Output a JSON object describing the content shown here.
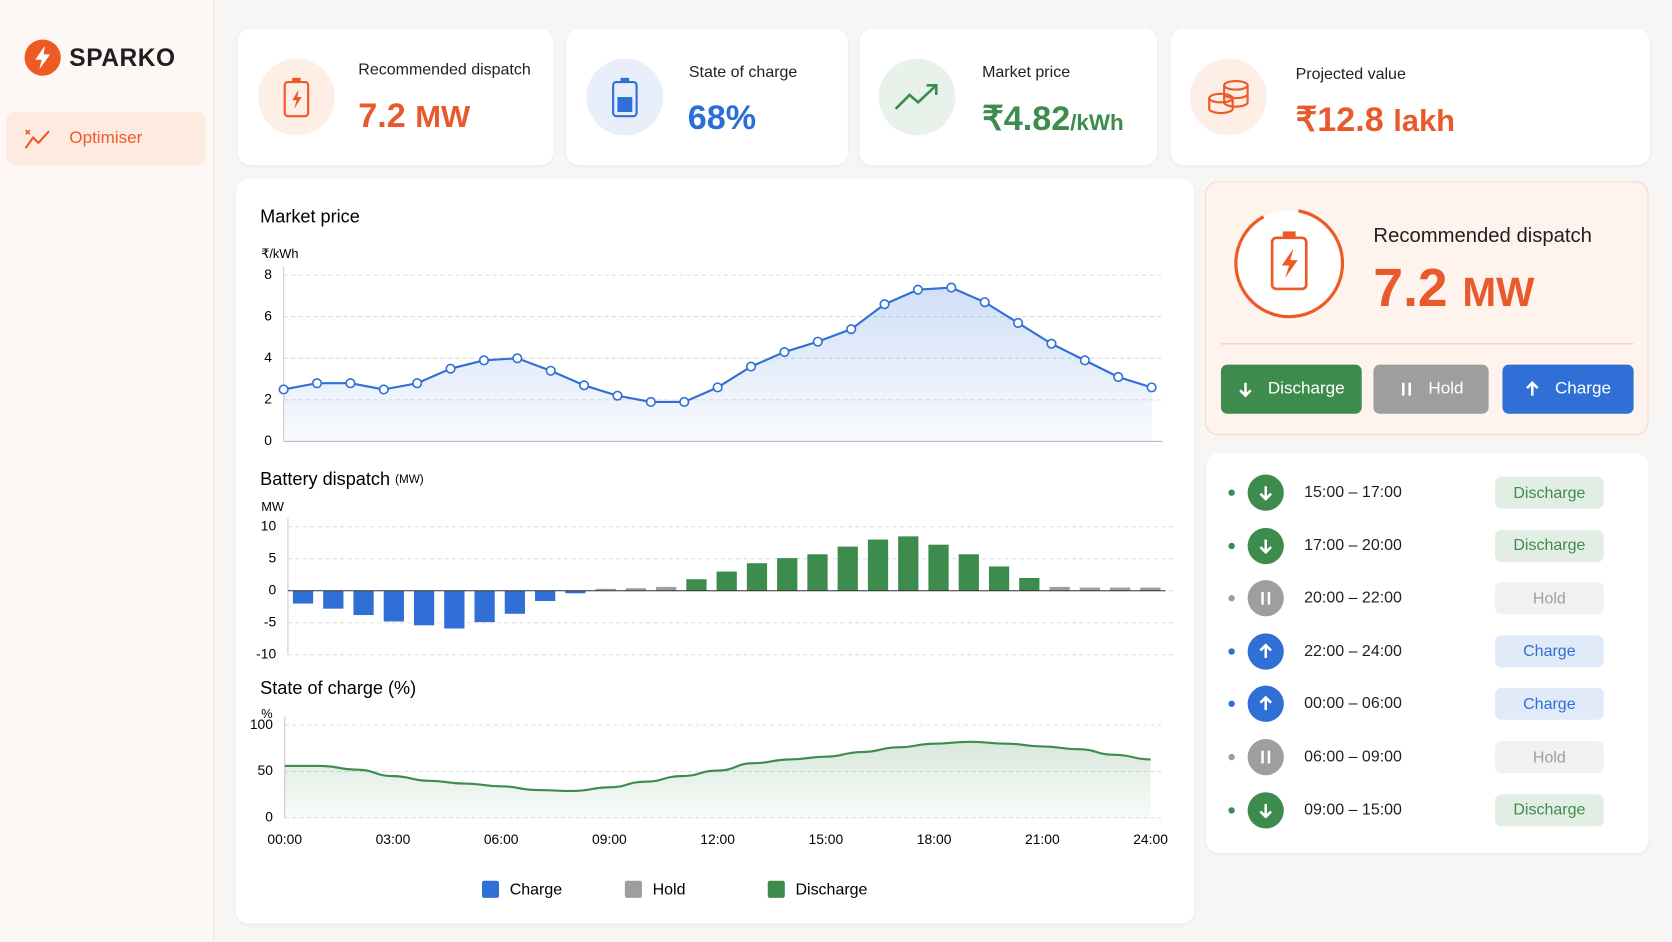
{
  "brand": "SPARKO",
  "nav": [
    {
      "label": "Optimiser"
    }
  ],
  "kpis": [
    {
      "label": "Recommended dispatch",
      "value": "7.2",
      "unit": "MW"
    },
    {
      "label": "State of charge",
      "value": "68%"
    },
    {
      "label": "Market price",
      "value": "₹4.82",
      "unit": "/kWh"
    },
    {
      "label": "Projected value",
      "value": "₹12.8",
      "unit": "lakh"
    }
  ],
  "chart_data": [
    {
      "type": "line",
      "title": "Market price",
      "y_label": "₹/kWh",
      "color": "#2f6fd6",
      "markers": true,
      "area": true,
      "values": [
        2.5,
        2.8,
        2.8,
        2.5,
        2.8,
        3.5,
        3.9,
        4.0,
        3.4,
        2.7,
        2.2,
        1.9,
        1.9,
        2.6,
        3.6,
        4.3,
        4.8,
        5.4,
        6.6,
        7.3,
        7.4,
        6.7,
        5.7,
        4.7,
        3.9,
        3.1,
        2.6
      ],
      "ylim": [
        0,
        8
      ],
      "yticks": [
        0,
        2,
        4,
        6,
        8
      ],
      "grid": true
    },
    {
      "type": "bar",
      "title": "Battery dispatch",
      "title_unit": "(MW)",
      "y_label": "MW",
      "legend": "bottom",
      "series": [
        {
          "name": "Charge",
          "color": "#2f6fd6",
          "values": [
            -2,
            -2.8,
            -3.8,
            -4.8,
            -5.4,
            -5.9,
            -4.9,
            -3.6,
            -1.6,
            -0.4,
            null,
            null,
            null,
            null,
            null,
            null,
            null,
            null,
            null,
            null,
            null,
            null,
            null,
            null,
            null,
            null,
            null,
            null,
            null
          ]
        },
        {
          "name": "Hold",
          "color": "#9e9e9e",
          "values": [
            null,
            null,
            null,
            null,
            null,
            null,
            null,
            null,
            null,
            null,
            0.3,
            0.4,
            0.6,
            null,
            null,
            null,
            null,
            null,
            null,
            null,
            null,
            null,
            null,
            null,
            null,
            0.6,
            0.5,
            0.5,
            0.5
          ]
        },
        {
          "name": "Discharge",
          "color": "#3d8b4d",
          "values": [
            null,
            null,
            null,
            null,
            null,
            null,
            null,
            null,
            null,
            null,
            null,
            null,
            null,
            1.8,
            3,
            4.3,
            5.1,
            5.7,
            6.9,
            8,
            8.5,
            7.2,
            5.7,
            3.8,
            2,
            null,
            null,
            null,
            null
          ]
        }
      ],
      "ylim": [
        -10,
        10
      ],
      "yticks": [
        -10,
        -5,
        0,
        5,
        10
      ],
      "grid": true
    },
    {
      "type": "area",
      "title": "State of charge (%)",
      "y_label": "%",
      "color": "#3d8b4d",
      "x": [
        0,
        1,
        2,
        3,
        4,
        5,
        6,
        7,
        8,
        9,
        10,
        11,
        12,
        13,
        14,
        15,
        16,
        17,
        18,
        19,
        20,
        21,
        22,
        23,
        24
      ],
      "values": [
        56,
        56,
        52,
        45,
        40,
        37,
        34,
        30,
        29,
        33,
        39,
        45,
        51,
        59,
        63,
        66,
        71,
        76,
        80,
        82,
        80,
        77,
        74,
        68,
        63
      ],
      "xlim": [
        0,
        24
      ],
      "xticks": [
        {
          "value": 0,
          "label": "00:00"
        },
        {
          "value": 3,
          "label": "03:00"
        },
        {
          "value": 6,
          "label": "06:00"
        },
        {
          "value": 9,
          "label": "09:00"
        },
        {
          "value": 12,
          "label": "12:00"
        },
        {
          "value": 15,
          "label": "15:00"
        },
        {
          "value": 18,
          "label": "18:00"
        },
        {
          "value": 21,
          "label": "21:00"
        },
        {
          "value": 24,
          "label": "24:00"
        }
      ],
      "ylim": [
        0,
        100
      ],
      "yticks": [
        0,
        50,
        100
      ],
      "grid": true
    }
  ],
  "dispatch": {
    "title": "Recommended dispatch",
    "value": "7.2",
    "unit": "MW",
    "actions": [
      "Discharge",
      "Hold",
      "Charge"
    ]
  },
  "schedule": [
    {
      "time": "15:00 – 17:00",
      "mode": "Discharge"
    },
    {
      "time": "17:00 – 20:00",
      "mode": "Discharge"
    },
    {
      "time": "20:00 – 22:00",
      "mode": "Hold"
    },
    {
      "time": "22:00 – 24:00",
      "mode": "Charge"
    },
    {
      "time": "00:00 – 06:00",
      "mode": "Charge"
    },
    {
      "time": "06:00 – 09:00",
      "mode": "Hold"
    },
    {
      "time": "09:00 – 15:00",
      "mode": "Discharge"
    }
  ]
}
